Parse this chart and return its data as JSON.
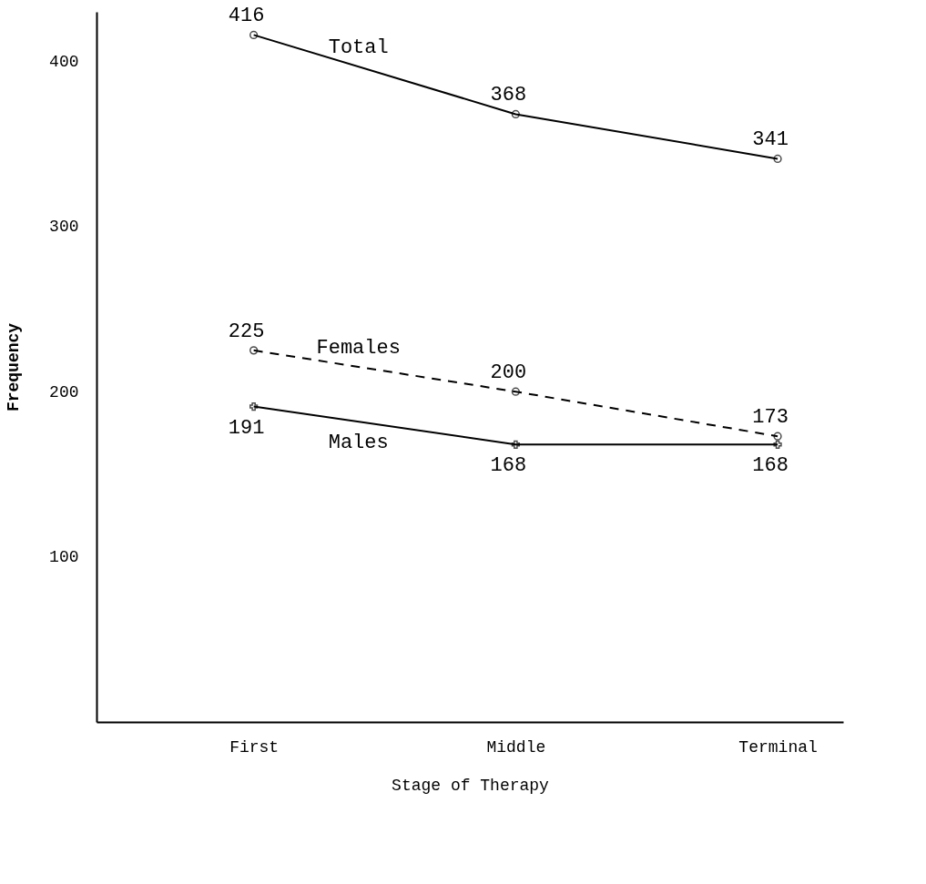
{
  "chart_data": {
    "type": "line",
    "xlabel": "Stage of Therapy",
    "ylabel": "Frequency",
    "categories": [
      "First",
      "Middle",
      "Terminal"
    ],
    "series": [
      {
        "name": "Total",
        "color": "#000000",
        "values": [
          416,
          368,
          341
        ],
        "marker": "circle",
        "line_style": "solid"
      },
      {
        "name": "Females",
        "color": "#000000",
        "values": [
          225,
          200,
          173
        ],
        "marker": "circle",
        "line_style": "dashed"
      },
      {
        "name": "Males",
        "color": "#000000",
        "values": [
          191,
          168,
          168
        ],
        "marker": "cross",
        "line_style": "solid"
      }
    ],
    "ylim": [
      0,
      430
    ],
    "yticks": [
      100,
      200,
      300,
      400
    ],
    "data_labels": true
  }
}
